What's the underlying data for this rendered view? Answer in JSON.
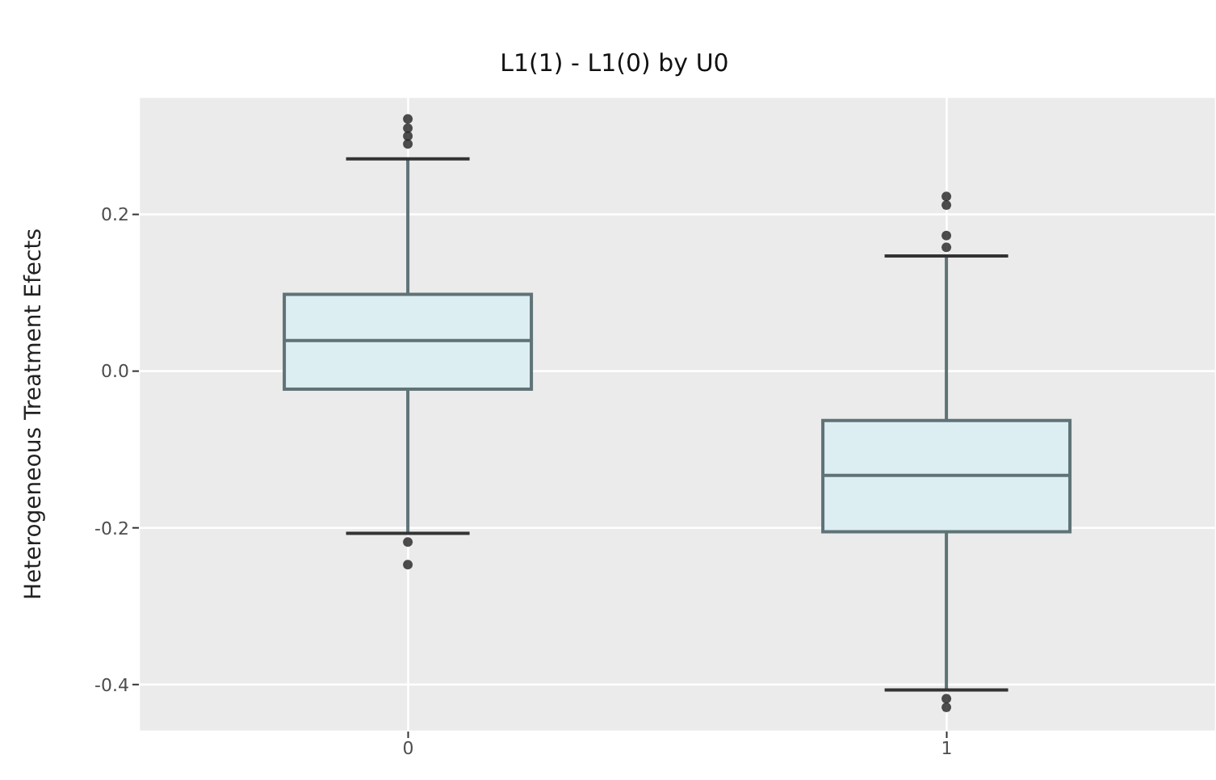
{
  "chart_data": {
    "type": "box",
    "title": "L1(1) - L1(0) by U0",
    "ylabel": "Heterogeneous Treatment Efects",
    "categories": [
      "0",
      "1"
    ],
    "boxes": [
      {
        "low": -0.207,
        "q1": -0.023,
        "median": 0.039,
        "q3": 0.098,
        "high": 0.271,
        "outliers": [
          0.322,
          0.31,
          0.3,
          0.29,
          -0.218,
          -0.247
        ]
      },
      {
        "low": -0.407,
        "q1": -0.205,
        "median": -0.133,
        "q3": -0.063,
        "high": 0.147,
        "outliers": [
          0.223,
          0.212,
          0.173,
          0.158,
          -0.418,
          -0.429
        ]
      }
    ],
    "color": "#ddeef2",
    "ylim": [
      -0.46,
      0.35
    ],
    "yticks": [
      {
        "value": -0.4,
        "label": "-0.4"
      },
      {
        "value": -0.2,
        "label": "-0.2"
      },
      {
        "value": 0,
        "label": "0.0"
      },
      {
        "value": 0.2,
        "label": "0.2"
      }
    ],
    "grid": true
  }
}
